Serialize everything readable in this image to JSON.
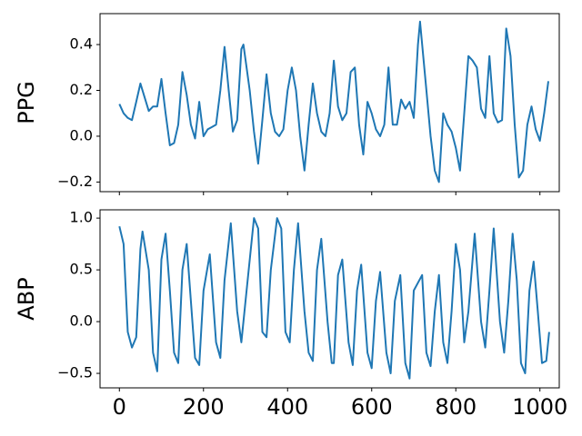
{
  "chart_data": [
    {
      "type": "line",
      "ylabel": "PPG",
      "color": "#1f77b4",
      "x": [
        0,
        10,
        20,
        30,
        40,
        50,
        60,
        70,
        80,
        90,
        100,
        110,
        120,
        130,
        140,
        150,
        160,
        170,
        180,
        190,
        200,
        210,
        220,
        230,
        240,
        250,
        260,
        270,
        280,
        290,
        295,
        310,
        320,
        330,
        340,
        350,
        360,
        370,
        380,
        390,
        400,
        410,
        420,
        430,
        440,
        450,
        460,
        470,
        480,
        490,
        500,
        510,
        520,
        530,
        540,
        550,
        560,
        570,
        580,
        590,
        600,
        610,
        620,
        630,
        640,
        650,
        660,
        670,
        680,
        690,
        700,
        710,
        715,
        730,
        740,
        750,
        760,
        770,
        780,
        790,
        800,
        810,
        820,
        830,
        840,
        850,
        860,
        870,
        880,
        890,
        900,
        910,
        920,
        930,
        940,
        950,
        960,
        970,
        980,
        990,
        1000,
        1010,
        1020
      ],
      "values": [
        0.14,
        0.1,
        0.08,
        0.07,
        0.15,
        0.23,
        0.17,
        0.11,
        0.13,
        0.13,
        0.25,
        0.1,
        -0.04,
        -0.03,
        0.05,
        0.28,
        0.18,
        0.05,
        -0.01,
        0.15,
        0.0,
        0.03,
        0.04,
        0.05,
        0.2,
        0.39,
        0.2,
        0.02,
        0.07,
        0.38,
        0.4,
        0.2,
        0.02,
        -0.12,
        0.07,
        0.27,
        0.1,
        0.02,
        0.0,
        0.03,
        0.2,
        0.3,
        0.2,
        0.0,
        -0.15,
        0.05,
        0.23,
        0.1,
        0.02,
        0.0,
        0.1,
        0.33,
        0.13,
        0.07,
        0.1,
        0.28,
        0.3,
        0.05,
        -0.08,
        0.15,
        0.1,
        0.03,
        0.0,
        0.05,
        0.3,
        0.05,
        0.05,
        0.16,
        0.12,
        0.15,
        0.08,
        0.4,
        0.5,
        0.2,
        0.0,
        -0.15,
        -0.2,
        0.1,
        0.05,
        0.02,
        -0.05,
        -0.15,
        0.1,
        0.35,
        0.33,
        0.3,
        0.12,
        0.08,
        0.35,
        0.1,
        0.06,
        0.07,
        0.47,
        0.35,
        0.05,
        -0.18,
        -0.15,
        0.05,
        0.13,
        0.03,
        -0.02,
        0.1,
        0.24
      ],
      "xlim": [
        -46,
        1046
      ],
      "ylim": [
        -0.242,
        0.535
      ],
      "yticks": [
        {
          "value": -0.2,
          "label": "−0.2"
        },
        {
          "value": 0,
          "label": "0.0"
        },
        0.2,
        0.4
      ]
    },
    {
      "type": "line",
      "ylabel": "ABP",
      "color": "#1f77b4",
      "x": [
        0,
        10,
        20,
        30,
        40,
        50,
        55,
        70,
        80,
        90,
        100,
        110,
        120,
        130,
        140,
        150,
        160,
        170,
        180,
        190,
        200,
        215,
        230,
        240,
        250,
        265,
        280,
        290,
        300,
        320,
        330,
        340,
        350,
        360,
        375,
        385,
        395,
        405,
        415,
        425,
        440,
        450,
        460,
        470,
        480,
        495,
        505,
        510,
        520,
        530,
        545,
        555,
        565,
        575,
        590,
        600,
        610,
        620,
        635,
        645,
        655,
        668,
        680,
        690,
        700,
        720,
        730,
        740,
        750,
        760,
        770,
        780,
        790,
        800,
        810,
        820,
        830,
        845,
        860,
        870,
        880,
        890,
        905,
        915,
        925,
        935,
        945,
        955,
        965,
        975,
        985,
        995,
        1005,
        1015,
        1022
      ],
      "values": [
        0.92,
        0.75,
        -0.1,
        -0.25,
        -0.15,
        0.7,
        0.87,
        0.5,
        -0.3,
        -0.48,
        0.6,
        0.85,
        0.3,
        -0.3,
        -0.4,
        0.5,
        0.75,
        0.2,
        -0.35,
        -0.42,
        0.3,
        0.65,
        -0.2,
        -0.35,
        0.4,
        0.95,
        0.1,
        -0.2,
        0.2,
        1.0,
        0.9,
        -0.1,
        -0.15,
        0.5,
        1.0,
        0.9,
        -0.1,
        -0.2,
        0.5,
        0.95,
        0.1,
        -0.3,
        -0.38,
        0.5,
        0.8,
        0.0,
        -0.4,
        -0.4,
        0.45,
        0.6,
        -0.2,
        -0.42,
        0.3,
        0.55,
        -0.3,
        -0.45,
        0.2,
        0.48,
        -0.3,
        -0.5,
        0.2,
        0.45,
        -0.4,
        -0.55,
        0.3,
        0.45,
        -0.3,
        -0.43,
        0.1,
        0.45,
        -0.2,
        -0.4,
        0.1,
        0.75,
        0.5,
        -0.2,
        0.1,
        0.85,
        0.0,
        -0.25,
        0.3,
        0.9,
        0.0,
        -0.3,
        0.2,
        0.85,
        0.4,
        -0.4,
        -0.5,
        0.3,
        0.58,
        0.1,
        -0.4,
        -0.38,
        -0.1
      ],
      "xlim": [
        -46,
        1046
      ],
      "ylim": [
        -0.64,
        1.08
      ],
      "xticks": [
        0,
        200,
        400,
        600,
        800,
        1000
      ],
      "yticks": [
        {
          "value": -0.5,
          "label": "−0.5"
        },
        {
          "value": 0,
          "label": "0.0"
        },
        0.5,
        {
          "value": 1,
          "label": "1.0"
        }
      ]
    }
  ]
}
